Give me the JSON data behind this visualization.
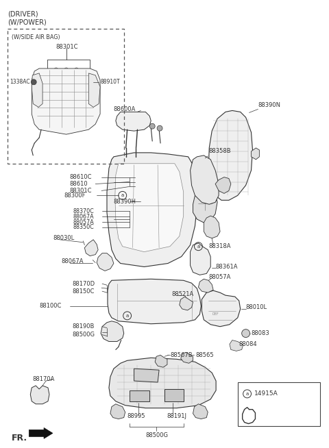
{
  "bg_color": "#ffffff",
  "fig_width": 4.8,
  "fig_height": 6.54,
  "dpi": 100,
  "line_color": "#333333",
  "text_color": "#333333",
  "fs_header": 7.0,
  "fs_label": 6.0,
  "fs_small": 5.5,
  "header_lines": [
    "(DRIVER)",
    "(W/POWER)"
  ],
  "inset_label": "(W/SIDE AIR BAG)",
  "inset_part": "88301C",
  "legend_part": "14915A"
}
